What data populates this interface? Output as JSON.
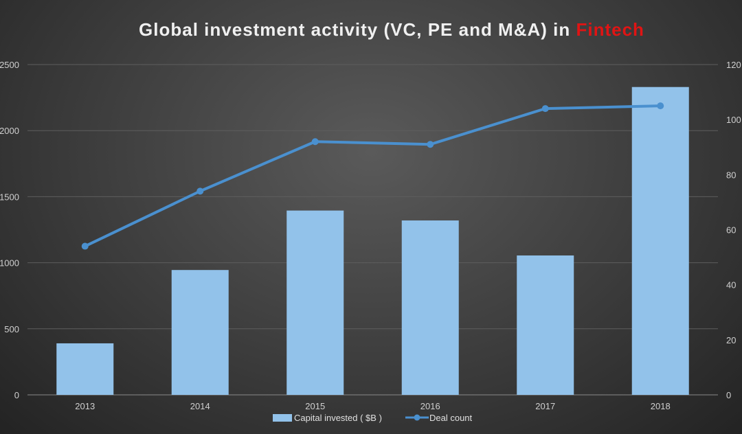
{
  "title": {
    "text": "Global investment activity (VC, PE and M&A) in ",
    "highlight": "Fintech",
    "highlight_color": "#e01414"
  },
  "chart_data": {
    "type": "bar+line",
    "title": "Global investment activity (VC, PE and M&A) in Fintech",
    "categories": [
      "2013",
      "2014",
      "2015",
      "2016",
      "2017",
      "2018"
    ],
    "series": [
      {
        "name": "Capital invested ( $B )",
        "type": "bar",
        "axis": "left",
        "color": "#92c2ea",
        "values": [
          390,
          945,
          1395,
          1320,
          1055,
          2330
        ]
      },
      {
        "name": "Deal count",
        "type": "line",
        "axis": "right",
        "color": "#4a90cf",
        "values": [
          54,
          74,
          92,
          91,
          104,
          105
        ]
      }
    ],
    "y_left": {
      "min": 0,
      "max": 2500,
      "ticks": [
        0,
        500,
        1000,
        1500,
        2000,
        2500
      ]
    },
    "y_right": {
      "min": 0,
      "max": 120,
      "ticks": [
        0,
        20,
        40,
        60,
        80,
        100,
        120
      ]
    },
    "grid": true,
    "legend_position": "bottom"
  }
}
